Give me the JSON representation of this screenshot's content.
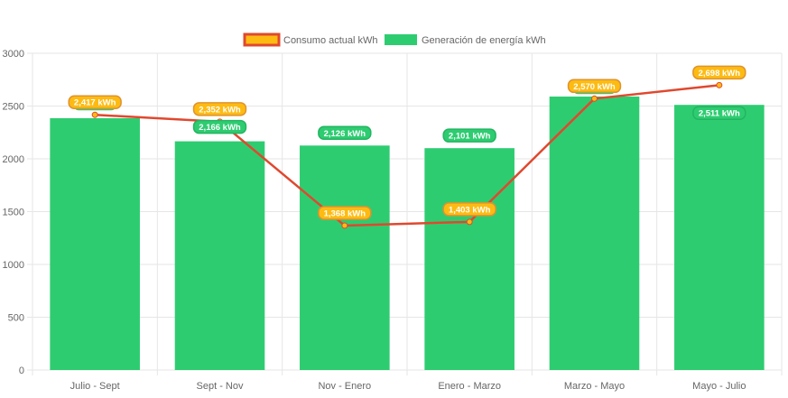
{
  "chart_data": {
    "type": "bar",
    "categories": [
      "Julio - Sept",
      "Sept - Nov",
      "Nov - Enero",
      "Enero - Marzo",
      "Marzo - Mayo",
      "Mayo - Julio"
    ],
    "series": [
      {
        "name": "Consumo actual kWh",
        "kind": "line",
        "values": [
          2417,
          2352,
          1368,
          1403,
          2570,
          2698
        ],
        "labels": [
          "2,417 kWh",
          "2,352 kWh",
          "1,368 kWh",
          "1,403 kWh",
          "2,570 kWh",
          "2,698 kWh"
        ],
        "line_color": "#e0482e",
        "fill_color": "#fdbb12"
      },
      {
        "name": "Generación de energía kWh",
        "kind": "bar",
        "values": [
          2385,
          2166,
          2126,
          2101,
          2590,
          2511
        ],
        "labels": [
          "",
          "2,166 kWh",
          "2,126 kWh",
          "2,101 kWh",
          "",
          "2,511 kWh"
        ],
        "color": "#2ecc71"
      }
    ],
    "ylim": [
      0,
      3000
    ],
    "yticks": [
      "0",
      "500",
      "1000",
      "1500",
      "2000",
      "2500",
      "3000"
    ],
    "ytick_values": [
      0,
      500,
      1000,
      1500,
      2000,
      2500,
      3000
    ],
    "grid": true,
    "legend": "top-center",
    "title": "",
    "xlabel": "",
    "ylabel": ""
  }
}
